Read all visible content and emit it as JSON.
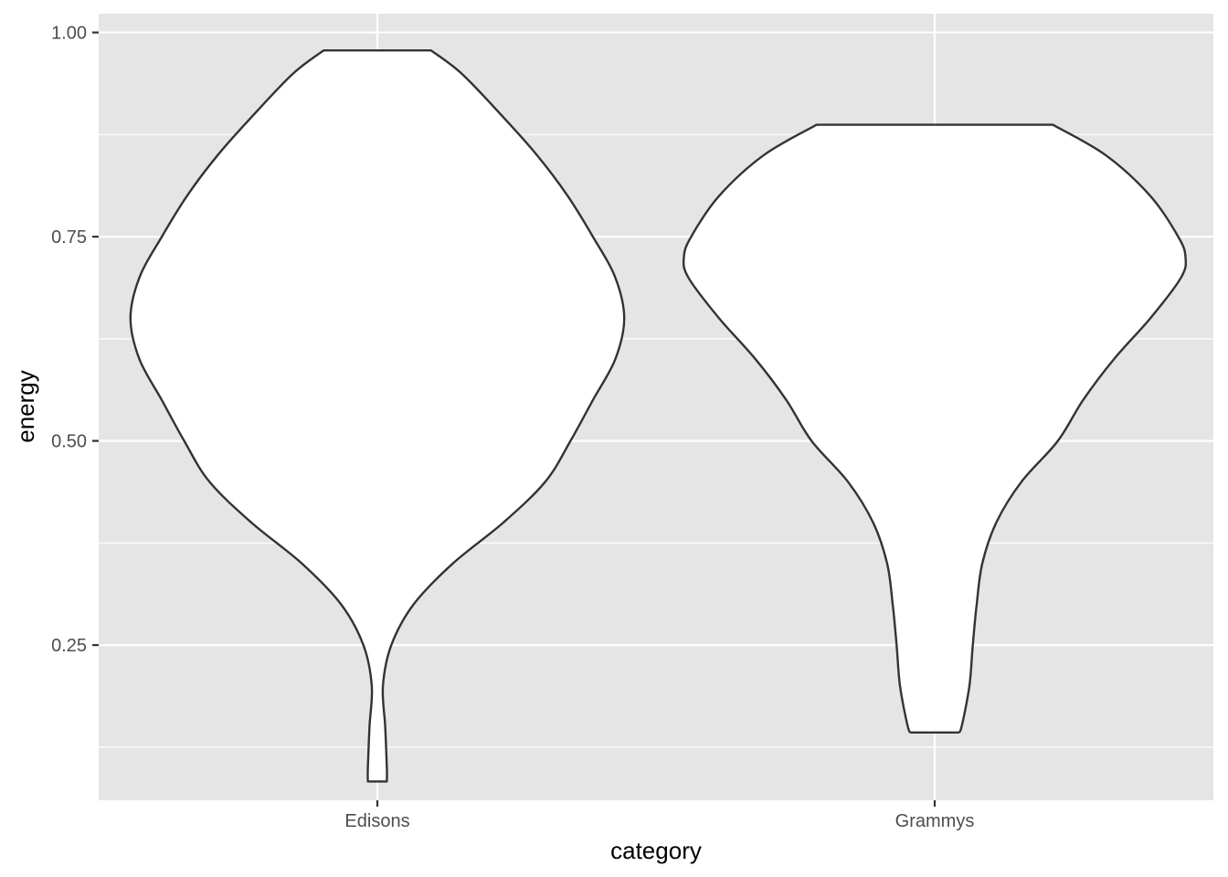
{
  "chart_data": {
    "type": "violin",
    "xlabel": "category",
    "ylabel": "energy",
    "categories": [
      "Edisons",
      "Grammys"
    ],
    "ylim": [
      0.06,
      1.023
    ],
    "y_ticks": [
      {
        "value": 0.25,
        "label": "0.25"
      },
      {
        "value": 0.5,
        "label": "0.50"
      },
      {
        "value": 0.75,
        "label": "0.75"
      },
      {
        "value": 1.0,
        "label": "1.00"
      }
    ],
    "grid": true,
    "legend": "none",
    "violins": [
      {
        "category": "Edisons",
        "min": 0.083,
        "max": 0.978,
        "density_profile": [
          [
            0.978,
            0.096
          ],
          [
            0.95,
            0.15
          ],
          [
            0.9,
            0.22
          ],
          [
            0.85,
            0.285
          ],
          [
            0.8,
            0.34
          ],
          [
            0.75,
            0.385
          ],
          [
            0.7,
            0.425
          ],
          [
            0.65,
            0.441
          ],
          [
            0.6,
            0.425
          ],
          [
            0.55,
            0.385
          ],
          [
            0.5,
            0.345
          ],
          [
            0.45,
            0.3
          ],
          [
            0.4,
            0.225
          ],
          [
            0.35,
            0.135
          ],
          [
            0.3,
            0.065
          ],
          [
            0.25,
            0.025
          ],
          [
            0.2,
            0.01
          ],
          [
            0.15,
            0.014
          ],
          [
            0.1,
            0.017
          ],
          [
            0.083,
            0.017
          ]
        ]
      },
      {
        "category": "Grammys",
        "min": 0.143,
        "max": 0.887,
        "density_profile": [
          [
            0.887,
            0.211
          ],
          [
            0.85,
            0.305
          ],
          [
            0.8,
            0.385
          ],
          [
            0.75,
            0.435
          ],
          [
            0.725,
            0.448
          ],
          [
            0.7,
            0.44
          ],
          [
            0.65,
            0.385
          ],
          [
            0.6,
            0.32
          ],
          [
            0.55,
            0.265
          ],
          [
            0.5,
            0.22
          ],
          [
            0.45,
            0.155
          ],
          [
            0.4,
            0.11
          ],
          [
            0.35,
            0.085
          ],
          [
            0.3,
            0.075
          ],
          [
            0.25,
            0.068
          ],
          [
            0.2,
            0.062
          ],
          [
            0.15,
            0.048
          ],
          [
            0.143,
            0.042
          ]
        ]
      }
    ]
  }
}
